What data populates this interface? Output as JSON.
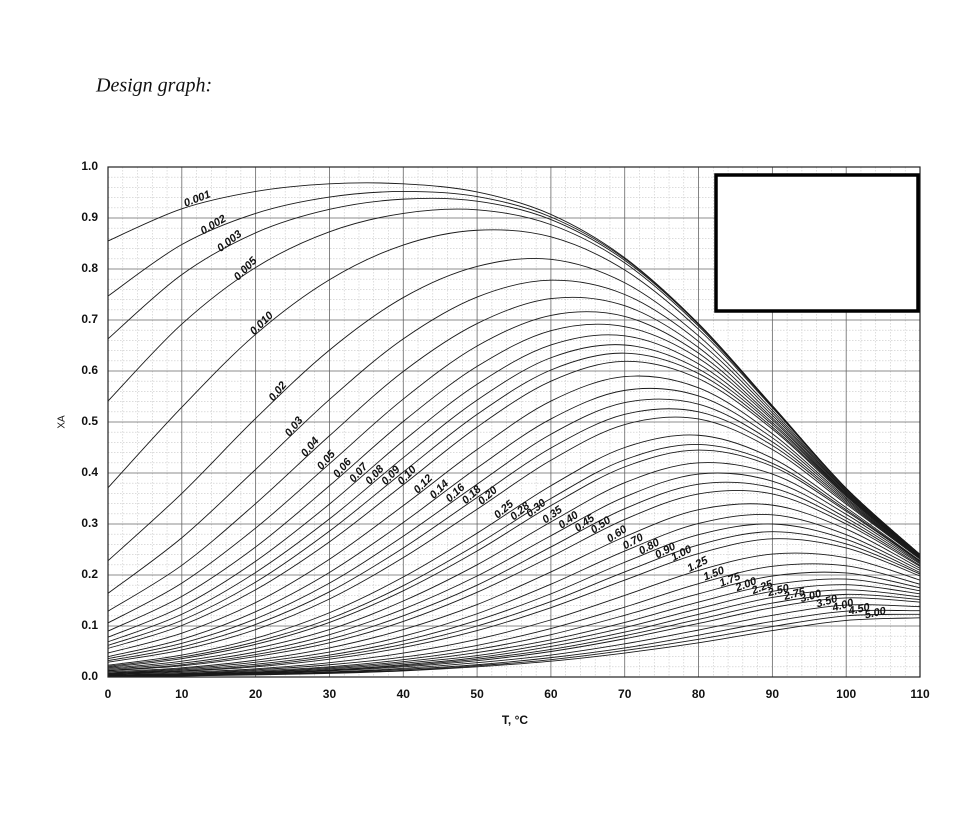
{
  "chart_data": {
    "type": "line",
    "title": "Design graph:",
    "xlabel": "T, °C",
    "ylabel": "XA",
    "x": [
      0,
      10,
      20,
      30,
      40,
      50,
      60,
      70,
      80,
      90,
      100,
      110
    ],
    "xlim": [
      0,
      110
    ],
    "xticks": [
      0,
      10,
      20,
      30,
      40,
      50,
      60,
      70,
      80,
      90,
      100,
      110
    ],
    "ylim": [
      0,
      1
    ],
    "yticks": [
      {
        "value": 0,
        "label": "0.0"
      },
      0.1,
      0.2,
      0.3,
      0.4,
      0.5,
      0.6,
      0.7,
      0.8,
      0.9,
      {
        "value": 1,
        "label": "1.0"
      }
    ],
    "grid": true,
    "color": "#1a1a1a",
    "series": [
      {
        "name": "0.001",
        "values": [
          0.855,
          0.918,
          0.952,
          0.967,
          0.967,
          0.951,
          0.907,
          0.822,
          0.693,
          0.532,
          0.37,
          0.24
        ]
      },
      {
        "name": "0.002",
        "values": [
          0.747,
          0.848,
          0.909,
          0.941,
          0.952,
          0.942,
          0.902,
          0.82,
          0.692,
          0.532,
          0.37,
          0.24
        ]
      },
      {
        "name": "0.003",
        "values": [
          0.663,
          0.789,
          0.871,
          0.917,
          0.937,
          0.933,
          0.897,
          0.817,
          0.691,
          0.531,
          0.37,
          0.24
        ]
      },
      {
        "name": "0.005",
        "values": [
          0.541,
          0.692,
          0.803,
          0.873,
          0.909,
          0.916,
          0.887,
          0.812,
          0.688,
          0.53,
          0.37,
          0.24
        ]
      },
      {
        "name": "0.010",
        "values": [
          0.371,
          0.529,
          0.672,
          0.779,
          0.847,
          0.876,
          0.863,
          0.798,
          0.682,
          0.528,
          0.369,
          0.24
        ]
      },
      {
        "name": "0.02",
        "values": [
          0.228,
          0.36,
          0.507,
          0.641,
          0.744,
          0.805,
          0.819,
          0.773,
          0.669,
          0.523,
          0.367,
          0.239
        ]
      },
      {
        "name": "0.03",
        "values": [
          0.164,
          0.273,
          0.407,
          0.544,
          0.663,
          0.745,
          0.778,
          0.75,
          0.658,
          0.518,
          0.365,
          0.239
        ]
      },
      {
        "name": "0.04",
        "values": [
          0.129,
          0.219,
          0.34,
          0.473,
          0.599,
          0.693,
          0.742,
          0.728,
          0.646,
          0.513,
          0.364,
          0.238
        ]
      },
      {
        "name": "0.05",
        "values": [
          0.106,
          0.184,
          0.292,
          0.418,
          0.545,
          0.649,
          0.709,
          0.707,
          0.635,
          0.508,
          0.362,
          0.238
        ]
      },
      {
        "name": "0.06",
        "values": [
          0.09,
          0.158,
          0.255,
          0.375,
          0.501,
          0.609,
          0.679,
          0.687,
          0.625,
          0.504,
          0.36,
          0.237
        ]
      },
      {
        "name": "0.07",
        "values": [
          0.078,
          0.138,
          0.227,
          0.339,
          0.463,
          0.574,
          0.651,
          0.669,
          0.614,
          0.499,
          0.359,
          0.237
        ]
      },
      {
        "name": "0.08",
        "values": [
          0.069,
          0.123,
          0.205,
          0.31,
          0.43,
          0.543,
          0.626,
          0.651,
          0.604,
          0.495,
          0.357,
          0.236
        ]
      },
      {
        "name": "0.09",
        "values": [
          0.062,
          0.111,
          0.186,
          0.286,
          0.402,
          0.515,
          0.602,
          0.635,
          0.595,
          0.49,
          0.356,
          0.236
        ]
      },
      {
        "name": "0.10",
        "values": [
          0.056,
          0.101,
          0.171,
          0.265,
          0.377,
          0.49,
          0.58,
          0.619,
          0.585,
          0.486,
          0.354,
          0.235
        ]
      },
      {
        "name": "0.12",
        "values": [
          0.047,
          0.086,
          0.146,
          0.231,
          0.336,
          0.446,
          0.541,
          0.589,
          0.567,
          0.477,
          0.351,
          0.234
        ]
      },
      {
        "name": "0.14",
        "values": [
          0.04,
          0.074,
          0.128,
          0.205,
          0.303,
          0.41,
          0.506,
          0.562,
          0.551,
          0.469,
          0.348,
          0.233
        ]
      },
      {
        "name": "0.16",
        "values": [
          0.036,
          0.066,
          0.114,
          0.184,
          0.276,
          0.378,
          0.476,
          0.538,
          0.535,
          0.461,
          0.345,
          0.233
        ]
      },
      {
        "name": "0.18",
        "values": [
          0.032,
          0.059,
          0.103,
          0.167,
          0.253,
          0.352,
          0.449,
          0.515,
          0.52,
          0.454,
          0.342,
          0.232
        ]
      },
      {
        "name": "0.20",
        "values": [
          0.029,
          0.053,
          0.093,
          0.153,
          0.234,
          0.329,
          0.425,
          0.495,
          0.506,
          0.446,
          0.339,
          0.231
        ]
      },
      {
        "name": "0.25",
        "values": [
          0.023,
          0.043,
          0.076,
          0.126,
          0.196,
          0.282,
          0.375,
          0.45,
          0.474,
          0.429,
          0.332,
          0.228
        ]
      },
      {
        "name": "0.28",
        "values": [
          0.021,
          0.039,
          0.069,
          0.114,
          0.179,
          0.26,
          0.35,
          0.426,
          0.456,
          0.419,
          0.328,
          0.227
        ]
      },
      {
        "name": "0.30",
        "values": [
          0.019,
          0.036,
          0.064,
          0.107,
          0.169,
          0.247,
          0.336,
          0.412,
          0.445,
          0.413,
          0.325,
          0.226
        ]
      },
      {
        "name": "0.35",
        "values": [
          0.017,
          0.031,
          0.056,
          0.093,
          0.149,
          0.22,
          0.304,
          0.381,
          0.42,
          0.398,
          0.319,
          0.224
        ]
      },
      {
        "name": "0.40",
        "values": [
          0.015,
          0.027,
          0.049,
          0.083,
          0.133,
          0.198,
          0.277,
          0.353,
          0.398,
          0.384,
          0.312,
          0.222
        ]
      },
      {
        "name": "0.45",
        "values": [
          0.013,
          0.024,
          0.044,
          0.074,
          0.12,
          0.18,
          0.255,
          0.33,
          0.378,
          0.371,
          0.306,
          0.219
        ]
      },
      {
        "name": "0.50",
        "values": [
          0.012,
          0.022,
          0.04,
          0.067,
          0.109,
          0.166,
          0.236,
          0.309,
          0.359,
          0.359,
          0.3,
          0.217
        ]
      },
      {
        "name": "0.60",
        "values": [
          0.01,
          0.018,
          0.033,
          0.057,
          0.093,
          0.142,
          0.206,
          0.275,
          0.328,
          0.337,
          0.29,
          0.213
        ]
      },
      {
        "name": "0.70",
        "values": [
          0.008,
          0.016,
          0.029,
          0.049,
          0.08,
          0.124,
          0.182,
          0.247,
          0.301,
          0.318,
          0.279,
          0.209
        ]
      },
      {
        "name": "0.80",
        "values": [
          0.007,
          0.014,
          0.025,
          0.043,
          0.071,
          0.111,
          0.163,
          0.225,
          0.279,
          0.3,
          0.27,
          0.205
        ]
      },
      {
        "name": "0.90",
        "values": [
          0.007,
          0.012,
          0.022,
          0.039,
          0.064,
          0.1,
          0.148,
          0.206,
          0.259,
          0.285,
          0.261,
          0.202
        ]
      },
      {
        "name": "1.00",
        "values": [
          0.006,
          0.011,
          0.02,
          0.035,
          0.058,
          0.091,
          0.136,
          0.19,
          0.242,
          0.271,
          0.253,
          0.198
        ]
      },
      {
        "name": "1.25",
        "values": [
          0.005,
          0.009,
          0.016,
          0.028,
          0.047,
          0.074,
          0.112,
          0.16,
          0.209,
          0.241,
          0.234,
          0.19
        ]
      },
      {
        "name": "1.50",
        "values": [
          0.004,
          0.007,
          0.014,
          0.024,
          0.039,
          0.062,
          0.095,
          0.137,
          0.183,
          0.217,
          0.218,
          0.182
        ]
      },
      {
        "name": "1.75",
        "values": [
          0.003,
          0.006,
          0.012,
          0.02,
          0.034,
          0.054,
          0.083,
          0.121,
          0.163,
          0.198,
          0.204,
          0.175
        ]
      },
      {
        "name": "2.00",
        "values": [
          0.003,
          0.006,
          0.01,
          0.018,
          0.03,
          0.048,
          0.073,
          0.107,
          0.147,
          0.181,
          0.192,
          0.169
        ]
      },
      {
        "name": "2.25",
        "values": [
          0.003,
          0.005,
          0.009,
          0.016,
          0.027,
          0.042,
          0.066,
          0.097,
          0.134,
          0.168,
          0.181,
          0.163
        ]
      },
      {
        "name": "2.50",
        "values": [
          0.002,
          0.004,
          0.008,
          0.014,
          0.024,
          0.038,
          0.06,
          0.088,
          0.123,
          0.156,
          0.171,
          0.157
        ]
      },
      {
        "name": "2.75",
        "values": [
          0.002,
          0.004,
          0.007,
          0.013,
          0.022,
          0.035,
          0.054,
          0.081,
          0.113,
          0.145,
          0.162,
          0.152
        ]
      },
      {
        "name": "3.00",
        "values": [
          0.002,
          0.004,
          0.007,
          0.012,
          0.02,
          0.032,
          0.05,
          0.075,
          0.105,
          0.136,
          0.155,
          0.147
        ]
      },
      {
        "name": "3.50",
        "values": [
          0.002,
          0.003,
          0.006,
          0.01,
          0.017,
          0.028,
          0.043,
          0.065,
          0.092,
          0.121,
          0.141,
          0.138
        ]
      },
      {
        "name": "4.00",
        "values": [
          0.001,
          0.003,
          0.005,
          0.009,
          0.015,
          0.024,
          0.038,
          0.057,
          0.082,
          0.109,
          0.129,
          0.13
        ]
      },
      {
        "name": "4.50",
        "values": [
          0.001,
          0.002,
          0.005,
          0.008,
          0.013,
          0.022,
          0.034,
          0.052,
          0.074,
          0.099,
          0.12,
          0.123
        ]
      },
      {
        "name": "5.00",
        "values": [
          0.001,
          0.002,
          0.004,
          0.007,
          0.012,
          0.02,
          0.031,
          0.047,
          0.067,
          0.091,
          0.111,
          0.116
        ]
      }
    ]
  }
}
